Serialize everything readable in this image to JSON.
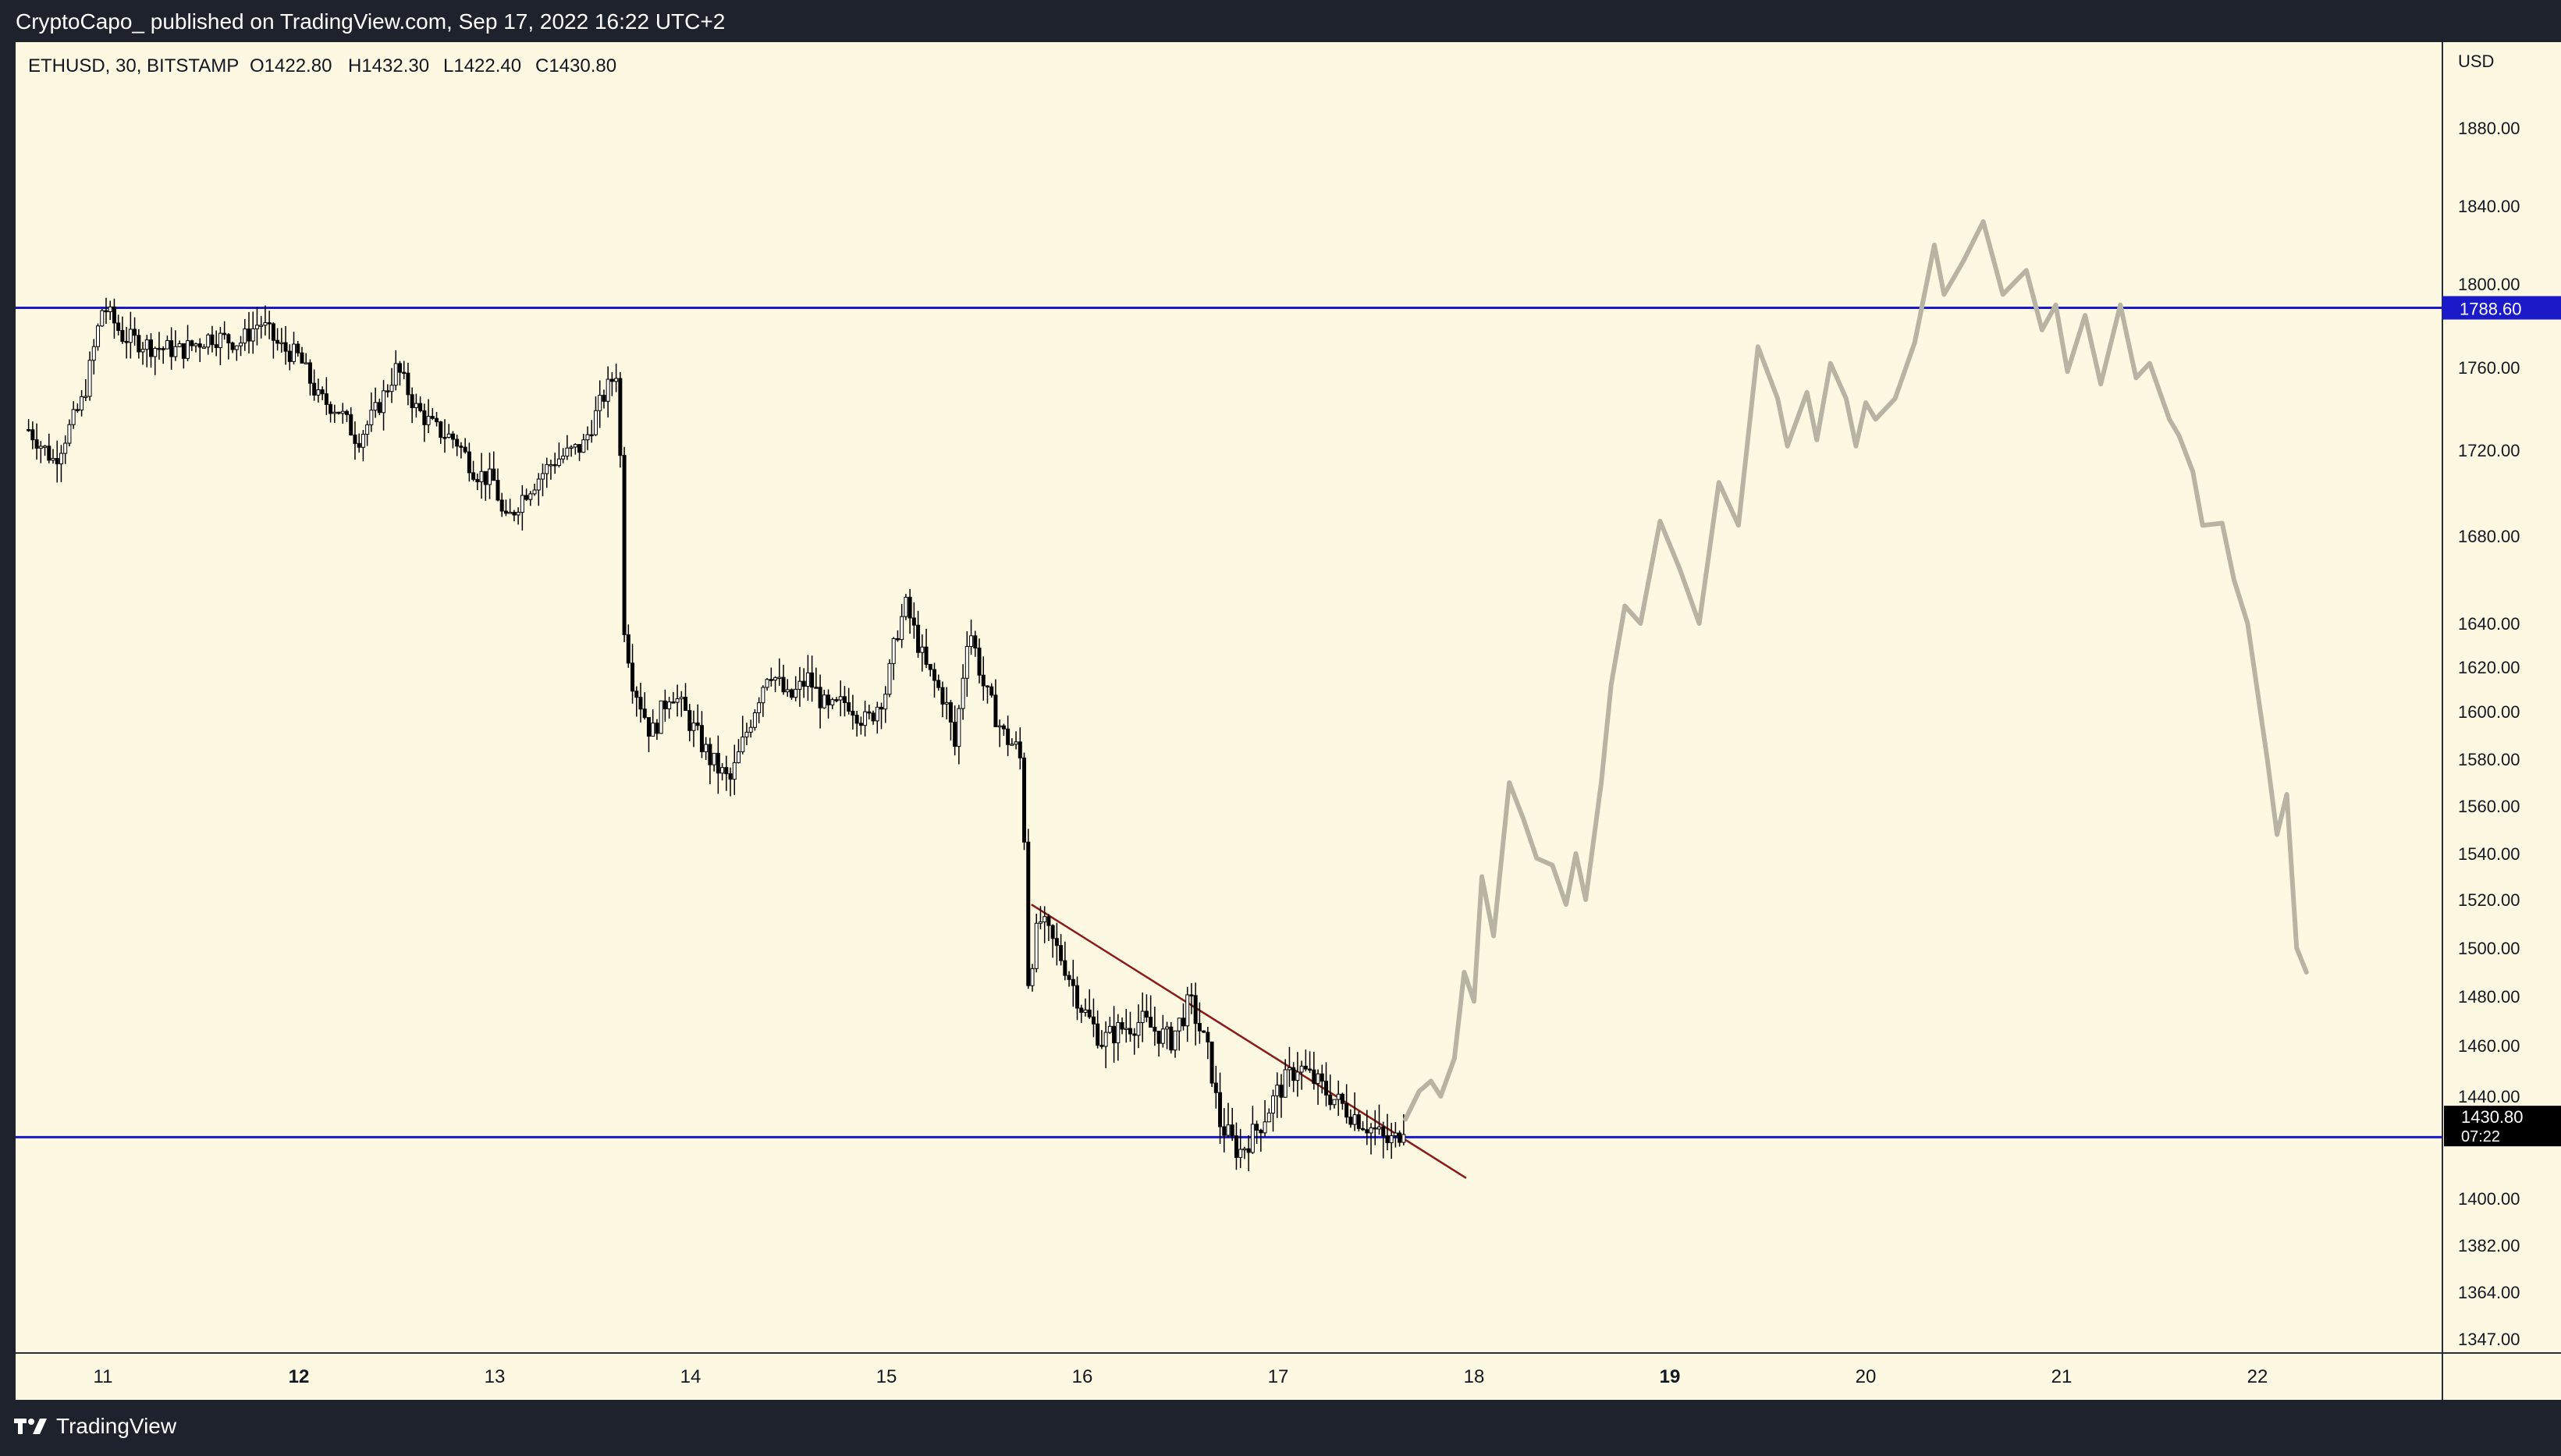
{
  "header": {
    "attribution": "CryptoCapo_ published on TradingView.com, Sep 17, 2022 16:22 UTC+2"
  },
  "footer": {
    "brand": "TradingView"
  },
  "colors": {
    "background": "#fdf8e1",
    "frame": "#1e222d",
    "horizontal_line": "#1a1ac8",
    "trendline": "#8b1a1a",
    "projection": "#b7b4a4",
    "candles": "#000000"
  },
  "chart_data": {
    "type": "candlestick",
    "symbol_info": "ETHUSD, 30, BITSTAMP",
    "ohlc": {
      "open_label": "O1422.80",
      "high_label": "H1432.30",
      "low_label": "L1422.40",
      "close_label": "C1430.80"
    },
    "currency": "USD",
    "ylim": [
      1335,
      1906
    ],
    "xlim": [
      10.6,
      23.0
    ],
    "y_ticks": [
      "1880.00",
      "1840.00",
      "1800.00",
      "1760.00",
      "1720.00",
      "1680.00",
      "1640.00",
      "1620.00",
      "1600.00",
      "1580.00",
      "1560.00",
      "1540.00",
      "1520.00",
      "1500.00",
      "1480.00",
      "1460.00",
      "1440.00",
      "1400.00",
      "1382.00",
      "1364.00",
      "1347.00"
    ],
    "x_ticks": [
      {
        "label": "11",
        "x": 11,
        "bold": false
      },
      {
        "label": "12",
        "x": 12,
        "bold": true
      },
      {
        "label": "13",
        "x": 13,
        "bold": false
      },
      {
        "label": "14",
        "x": 14,
        "bold": false
      },
      {
        "label": "15",
        "x": 15,
        "bold": false
      },
      {
        "label": "16",
        "x": 16,
        "bold": false
      },
      {
        "label": "17",
        "x": 17,
        "bold": false
      },
      {
        "label": "18",
        "x": 18,
        "bold": false
      },
      {
        "label": "19",
        "x": 19,
        "bold": true
      },
      {
        "label": "20",
        "x": 20,
        "bold": false
      },
      {
        "label": "21",
        "x": 21,
        "bold": false
      },
      {
        "label": "22",
        "x": 22,
        "bold": false
      }
    ],
    "horizontal_levels": [
      {
        "value": 1788.6,
        "label": "1788.60"
      },
      {
        "value": 1424.0,
        "label": ""
      }
    ],
    "last_price": {
      "value": 1430.8,
      "label": "1430.80",
      "countdown": "07:22"
    },
    "trendline": {
      "from": [
        15.74,
        1518
      ],
      "to": [
        17.96,
        1408
      ]
    },
    "price_path": [
      [
        10.62,
        1730
      ],
      [
        10.75,
        1715
      ],
      [
        10.9,
        1745
      ],
      [
        11.0,
        1790
      ],
      [
        11.1,
        1775
      ],
      [
        11.25,
        1770
      ],
      [
        11.4,
        1768
      ],
      [
        11.55,
        1775
      ],
      [
        11.7,
        1772
      ],
      [
        11.8,
        1782
      ],
      [
        11.9,
        1770
      ],
      [
        12.0,
        1765
      ],
      [
        12.1,
        1745
      ],
      [
        12.2,
        1740
      ],
      [
        12.3,
        1725
      ],
      [
        12.4,
        1740
      ],
      [
        12.5,
        1760
      ],
      [
        12.6,
        1740
      ],
      [
        12.7,
        1730
      ],
      [
        12.8,
        1725
      ],
      [
        12.9,
        1710
      ],
      [
        13.0,
        1705
      ],
      [
        13.05,
        1685
      ],
      [
        13.15,
        1700
      ],
      [
        13.3,
        1715
      ],
      [
        13.45,
        1722
      ],
      [
        13.55,
        1745
      ],
      [
        13.62,
        1758
      ],
      [
        13.64,
        1720
      ],
      [
        13.66,
        1640
      ],
      [
        13.7,
        1615
      ],
      [
        13.8,
        1590
      ],
      [
        13.9,
        1610
      ],
      [
        14.0,
        1595
      ],
      [
        14.1,
        1580
      ],
      [
        14.2,
        1570
      ],
      [
        14.3,
        1595
      ],
      [
        14.4,
        1620
      ],
      [
        14.5,
        1605
      ],
      [
        14.6,
        1615
      ],
      [
        14.7,
        1600
      ],
      [
        14.8,
        1605
      ],
      [
        14.9,
        1595
      ],
      [
        15.0,
        1610
      ],
      [
        15.05,
        1635
      ],
      [
        15.1,
        1648
      ],
      [
        15.2,
        1620
      ],
      [
        15.3,
        1605
      ],
      [
        15.35,
        1585
      ],
      [
        15.42,
        1640
      ],
      [
        15.5,
        1610
      ],
      [
        15.6,
        1590
      ],
      [
        15.68,
        1583
      ],
      [
        15.7,
        1560
      ],
      [
        15.72,
        1485
      ],
      [
        15.78,
        1512
      ],
      [
        15.9,
        1495
      ],
      [
        16.0,
        1475
      ],
      [
        16.1,
        1462
      ],
      [
        16.2,
        1467
      ],
      [
        16.3,
        1470
      ],
      [
        16.45,
        1462
      ],
      [
        16.55,
        1478
      ],
      [
        16.65,
        1455
      ],
      [
        16.7,
        1430
      ],
      [
        16.8,
        1418
      ],
      [
        16.9,
        1428
      ],
      [
        17.0,
        1442
      ],
      [
        17.1,
        1452
      ],
      [
        17.2,
        1445
      ],
      [
        17.3,
        1438
      ],
      [
        17.4,
        1432
      ],
      [
        17.5,
        1426
      ],
      [
        17.55,
        1422
      ],
      [
        17.6,
        1423
      ],
      [
        17.65,
        1431
      ]
    ],
    "projection_path": [
      [
        17.65,
        1431
      ],
      [
        17.72,
        1442
      ],
      [
        17.78,
        1446
      ],
      [
        17.83,
        1440
      ],
      [
        17.9,
        1455
      ],
      [
        17.95,
        1490
      ],
      [
        18.0,
        1478
      ],
      [
        18.04,
        1530
      ],
      [
        18.1,
        1505
      ],
      [
        18.18,
        1570
      ],
      [
        18.25,
        1555
      ],
      [
        18.32,
        1538
      ],
      [
        18.4,
        1535
      ],
      [
        18.47,
        1518
      ],
      [
        18.52,
        1540
      ],
      [
        18.57,
        1520
      ],
      [
        18.65,
        1570
      ],
      [
        18.7,
        1612
      ],
      [
        18.77,
        1648
      ],
      [
        18.85,
        1640
      ],
      [
        18.95,
        1687
      ],
      [
        19.05,
        1665
      ],
      [
        19.15,
        1640
      ],
      [
        19.25,
        1705
      ],
      [
        19.35,
        1685
      ],
      [
        19.45,
        1770
      ],
      [
        19.55,
        1745
      ],
      [
        19.6,
        1722
      ],
      [
        19.7,
        1748
      ],
      [
        19.75,
        1725
      ],
      [
        19.82,
        1762
      ],
      [
        19.9,
        1745
      ],
      [
        19.95,
        1722
      ],
      [
        20.0,
        1743
      ],
      [
        20.05,
        1735
      ],
      [
        20.15,
        1745
      ],
      [
        20.25,
        1772
      ],
      [
        20.35,
        1820
      ],
      [
        20.4,
        1795
      ],
      [
        20.5,
        1812
      ],
      [
        20.6,
        1832
      ],
      [
        20.7,
        1795
      ],
      [
        20.82,
        1807
      ],
      [
        20.9,
        1778
      ],
      [
        20.97,
        1790
      ],
      [
        21.03,
        1758
      ],
      [
        21.12,
        1785
      ],
      [
        21.2,
        1752
      ],
      [
        21.3,
        1790
      ],
      [
        21.38,
        1755
      ],
      [
        21.45,
        1762
      ],
      [
        21.55,
        1735
      ],
      [
        21.6,
        1727
      ],
      [
        21.67,
        1710
      ],
      [
        21.72,
        1685
      ],
      [
        21.82,
        1686
      ],
      [
        21.88,
        1660
      ],
      [
        21.95,
        1640
      ],
      [
        22.05,
        1580
      ],
      [
        22.1,
        1548
      ],
      [
        22.15,
        1565
      ],
      [
        22.2,
        1500
      ],
      [
        22.25,
        1490
      ]
    ]
  }
}
